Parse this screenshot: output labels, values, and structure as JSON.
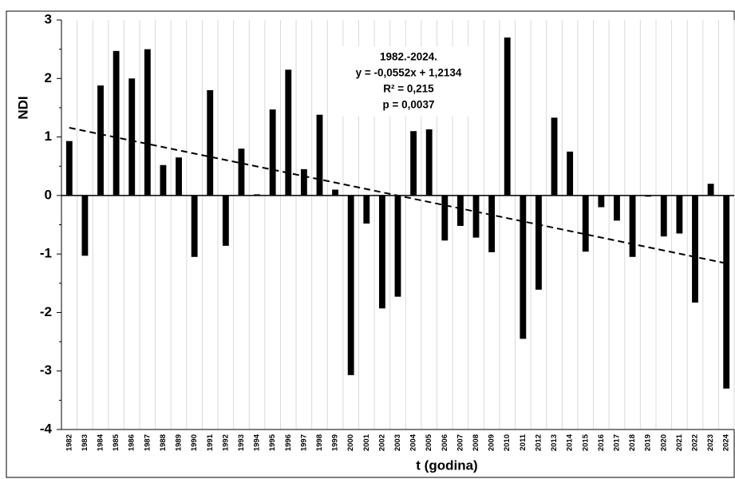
{
  "chart_data": {
    "type": "bar",
    "y_label": "NDI",
    "x_label": "t (godina)",
    "annotation": [
      "1982.-2024.",
      "y = -0,0552x + 1,2134",
      "R² = 0,215",
      "p = 0,0037"
    ],
    "trendline": {
      "slope": -0.0552,
      "intercept": 1.2134
    },
    "categories": [
      "1982",
      "1983",
      "1984",
      "1985",
      "1986",
      "1987",
      "1988",
      "1989",
      "1990",
      "1991",
      "1992",
      "1993",
      "1994",
      "1995",
      "1996",
      "1997",
      "1998",
      "1999",
      "2000",
      "2001",
      "2002",
      "2003",
      "2004",
      "2005",
      "2006",
      "2007",
      "2008",
      "2009",
      "2010",
      "2011",
      "2012",
      "2013",
      "2014",
      "2015",
      "2016",
      "2017",
      "2018",
      "2019",
      "2020",
      "2021",
      "2022",
      "2023",
      "2024"
    ],
    "values": [
      0.93,
      -1.03,
      1.88,
      2.47,
      2.0,
      2.5,
      0.52,
      0.65,
      -1.05,
      1.8,
      -0.86,
      0.8,
      0.02,
      1.47,
      2.15,
      0.45,
      1.38,
      0.1,
      -3.07,
      -0.48,
      -1.93,
      -1.73,
      1.1,
      1.13,
      -0.77,
      -0.52,
      -0.72,
      -0.97,
      2.7,
      -2.45,
      -1.61,
      1.33,
      0.75,
      -0.96,
      -0.2,
      -0.43,
      -1.05,
      -0.02,
      -0.7,
      -0.65,
      -1.83,
      0.2,
      -3.3
    ],
    "color": "#000000",
    "ylim": [
      -4,
      3
    ],
    "yticks": [
      -4,
      -3,
      -2,
      -1,
      0,
      1,
      2,
      3
    ],
    "grid": true
  }
}
